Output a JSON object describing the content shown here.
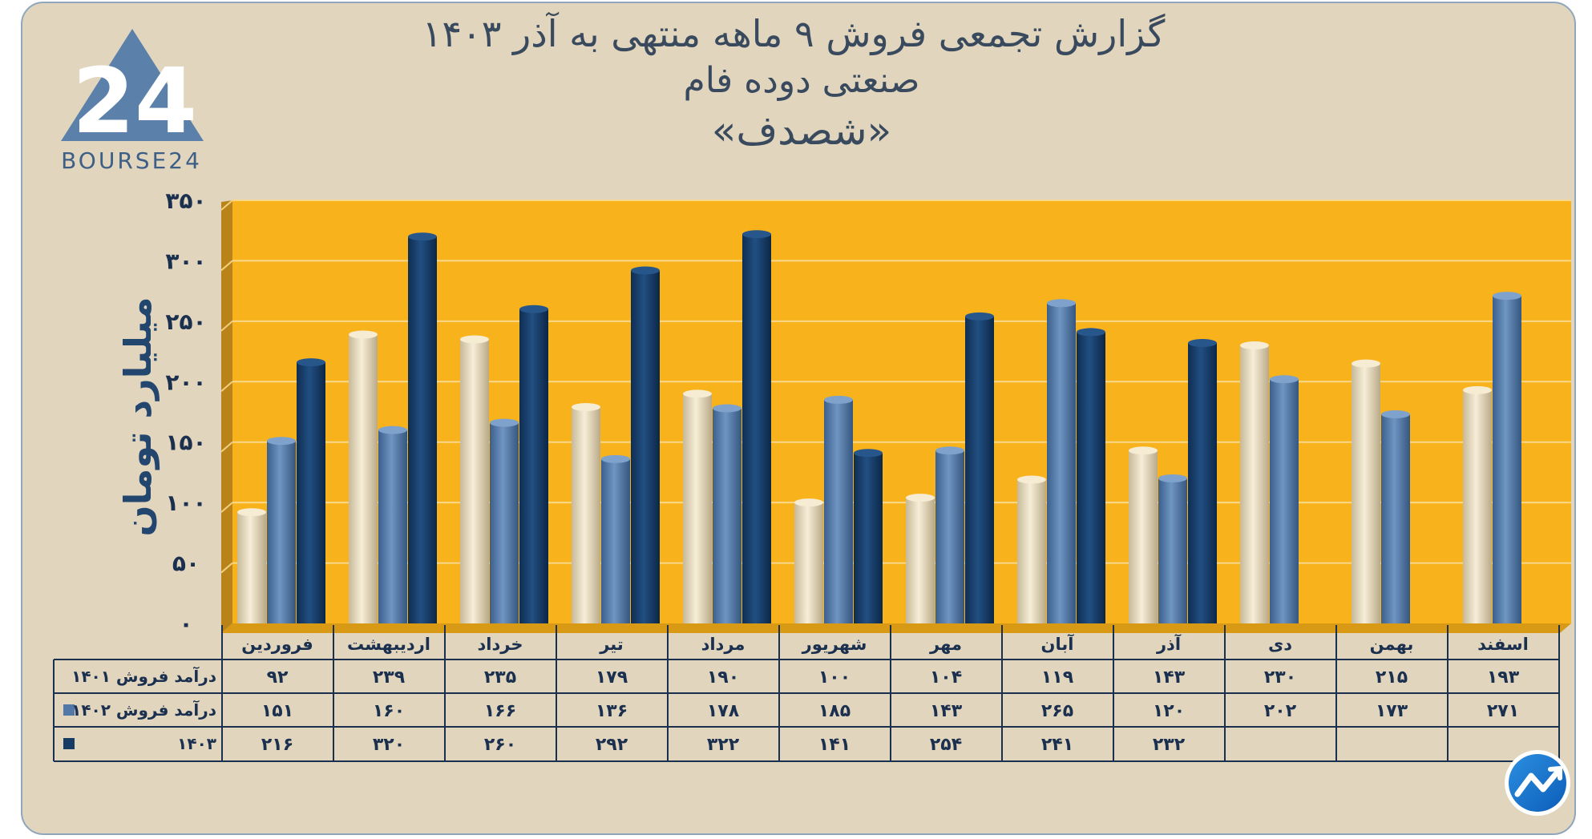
{
  "header": {
    "title_line1": "گزارش تجمعی فروش ۹ ماهه منتهی به آذر ۱۴۰۳",
    "title_line2": "صنعتی دوده فام",
    "title_line3": "«شصدف»"
  },
  "logo": {
    "text": "BOURSE24",
    "mark": "24",
    "icon": "bourse24-triangle-logo"
  },
  "badge": {
    "icon": "trend-arrow-icon"
  },
  "colors": {
    "plot_bg": "#f8b31c",
    "frame_bg": "#e1d6bd",
    "series_1401": "#ece0c2",
    "series_1402": "#5278a8",
    "series_1403": "#163c66"
  },
  "chart_data": {
    "type": "bar",
    "title": "گزارش تجمعی فروش ۹ ماهه منتهی به آذر ۱۴۰۳",
    "subtitle": "صنعتی دوده فام «شصدف»",
    "ylabel": "میلیارد تومان",
    "xlabel": "",
    "ylim": [
      0,
      350
    ],
    "yticks": [
      0,
      50,
      100,
      150,
      200,
      250,
      300,
      350
    ],
    "ytick_labels": [
      "۰",
      "۵۰",
      "۱۰۰",
      "۱۵۰",
      "۲۰۰",
      "۲۵۰",
      "۳۰۰",
      "۳۵۰"
    ],
    "grid": true,
    "legend": "data-table-below",
    "categories": [
      "فروردین",
      "اردیبهشت",
      "خرداد",
      "تیر",
      "مرداد",
      "شهریور",
      "مهر",
      "آبان",
      "آذر",
      "دی",
      "بهمن",
      "اسفند"
    ],
    "series": [
      {
        "name": "درآمد فروش ۱۴۰۱",
        "color_key": "series_1401",
        "values": [
          92,
          239,
          235,
          179,
          190,
          100,
          104,
          119,
          143,
          230,
          215,
          193
        ],
        "labels": [
          "۹۲",
          "۲۳۹",
          "۲۳۵",
          "۱۷۹",
          "۱۹۰",
          "۱۰۰",
          "۱۰۴",
          "۱۱۹",
          "۱۴۳",
          "۲۳۰",
          "۲۱۵",
          "۱۹۳"
        ]
      },
      {
        "name": "درآمد فروش ۱۴۰۲",
        "color_key": "series_1402",
        "values": [
          151,
          160,
          166,
          136,
          178,
          185,
          143,
          265,
          120,
          202,
          173,
          271
        ],
        "labels": [
          "۱۵۱",
          "۱۶۰",
          "۱۶۶",
          "۱۳۶",
          "۱۷۸",
          "۱۸۵",
          "۱۴۳",
          "۲۶۵",
          "۱۲۰",
          "۲۰۲",
          "۱۷۳",
          "۲۷۱"
        ]
      },
      {
        "name": "۱۴۰۳",
        "color_key": "series_1403",
        "values": [
          216,
          320,
          260,
          292,
          322,
          141,
          254,
          241,
          232,
          null,
          null,
          null
        ],
        "labels": [
          "۲۱۶",
          "۳۲۰",
          "۲۶۰",
          "۲۹۲",
          "۳۲۲",
          "۱۴۱",
          "۲۵۴",
          "۲۴۱",
          "۲۳۲",
          "",
          "",
          ""
        ]
      }
    ]
  }
}
